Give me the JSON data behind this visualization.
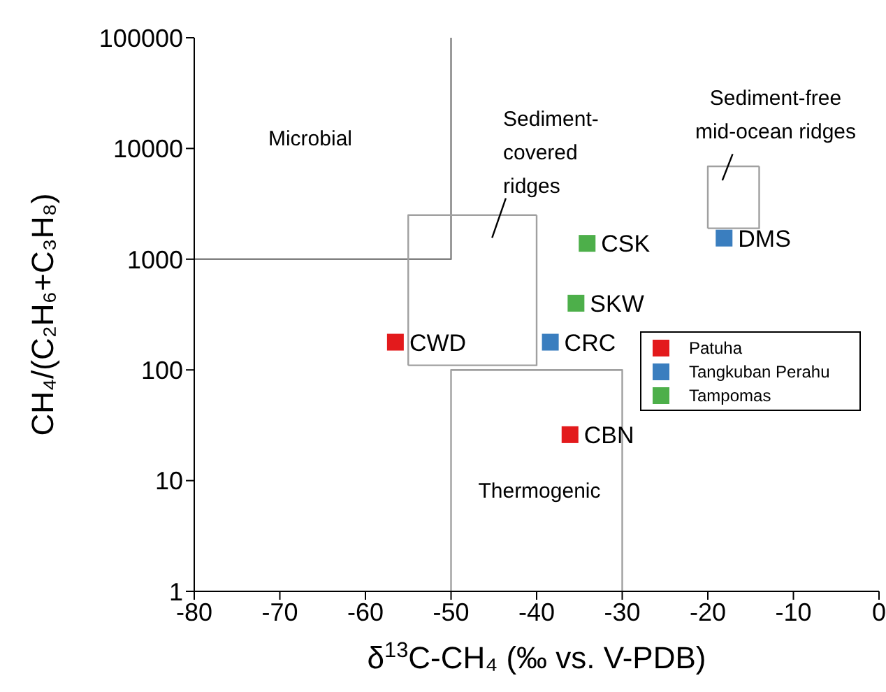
{
  "chart_data": {
    "type": "scatter",
    "xlabel": "δ$^{13}$C-CH₄ (‰ vs. V-PDB)",
    "ylabel": "CH₄/(C₂H₆+C₃H₈)",
    "xlim": [
      -80,
      0
    ],
    "xticks": [
      -80,
      -70,
      -60,
      -50,
      -40,
      -30,
      -20,
      -10,
      0
    ],
    "ylim": [
      1,
      100000
    ],
    "yticks": [
      1,
      10,
      100,
      1000,
      10000,
      100000
    ],
    "log": "y",
    "marker": "square",
    "legend": "right",
    "grid": false,
    "series": [
      {
        "name": "Patuha",
        "color": "#e31a1c",
        "x": [
          -56.5,
          -36.1
        ],
        "values": [
          178,
          26
        ]
      },
      {
        "name": "Tangkuban Perahu",
        "color": "#3a7ebf",
        "x": [
          -38.4,
          -18.1
        ],
        "values": [
          178,
          1550
        ]
      },
      {
        "name": "Tampomas",
        "color": "#4daf4a",
        "x": [
          -34.1,
          -35.4
        ],
        "values": [
          1390,
          400
        ]
      },
      {
        "type": "line",
        "marker": "none",
        "color": "#808080",
        "x": [
          -80,
          -50,
          -50
        ],
        "values": [
          1000,
          1000,
          100000
        ]
      },
      {
        "type": "line",
        "marker": "none",
        "color": "#a0a0a0",
        "x": [
          -55,
          -40,
          -40
        ],
        "values": [
          110,
          110,
          2500
        ]
      },
      {
        "type": "line",
        "marker": "none",
        "color": "#a0a0a0",
        "x": [
          -55,
          -55,
          -40
        ],
        "values": [
          110,
          2500,
          2500
        ]
      },
      {
        "type": "line",
        "marker": "none",
        "color": "#a0a0a0",
        "x": [
          -20,
          -14,
          -14
        ],
        "values": [
          1900,
          1900,
          6900
        ]
      },
      {
        "type": "line",
        "marker": "none",
        "color": "#a0a0a0",
        "x": [
          -20,
          -20,
          -14
        ],
        "values": [
          1900,
          6900,
          6900
        ]
      },
      {
        "type": "line",
        "marker": "none",
        "color": "#a0a0a0",
        "x": [
          -50,
          -50,
          -30
        ],
        "values": [
          1,
          100,
          100
        ]
      },
      {
        "type": "line",
        "marker": "none",
        "color": "#a0a0a0",
        "x": [
          -50,
          -30,
          -30
        ],
        "values": [
          100,
          100,
          1
        ]
      },
      {
        "type": "line",
        "marker": "none",
        "color": "#000000",
        "x": [
          -43.6,
          -45.2
        ],
        "values": [
          3550,
          1560
        ]
      },
      {
        "type": "line",
        "marker": "none",
        "color": "#000000",
        "x": [
          -17.1,
          -18.3
        ],
        "values": [
          8900,
          5150
        ]
      }
    ],
    "annotations": [
      "Microbial",
      "Sediment-\ncovered\nridges",
      "Sediment-free\nmid-ocean ridges",
      "Thermogenic",
      {
        "text": "CWD",
        "x": -56.5,
        "y": 178
      },
      {
        "text": "CBN",
        "x": -36.1,
        "y": 26
      },
      {
        "text": "CRC",
        "x": -38.4,
        "y": 178
      },
      {
        "text": "DMS",
        "x": -18.1,
        "y": 1550
      },
      {
        "text": "CSK",
        "x": -34.1,
        "y": 1390
      },
      {
        "text": "SKW",
        "x": -35.4,
        "y": 400
      }
    ]
  }
}
